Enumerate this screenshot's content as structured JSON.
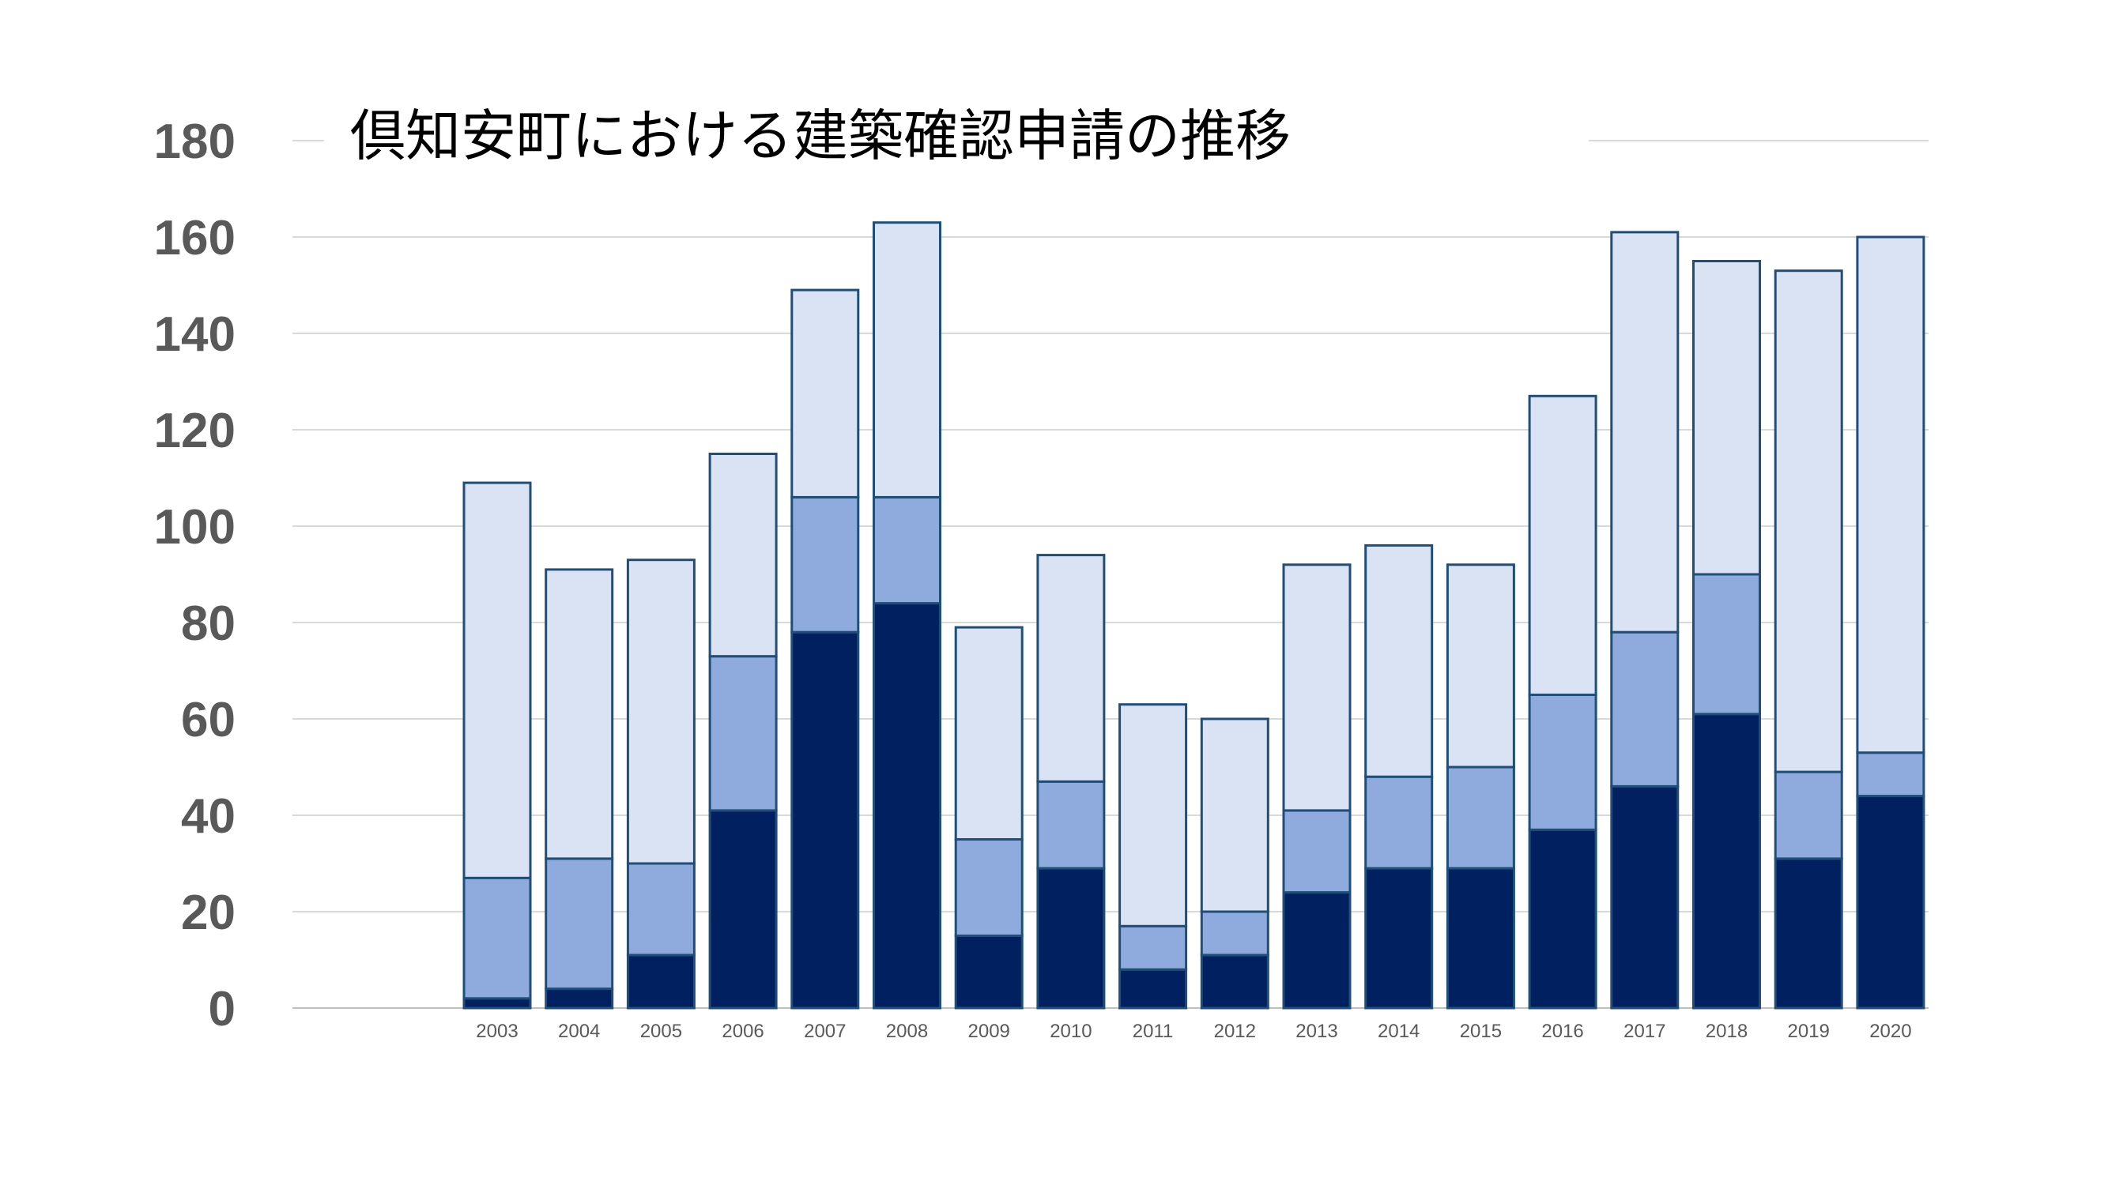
{
  "chart_data": {
    "type": "bar",
    "stacked": true,
    "title": "倶知安町における建築確認申請の推移",
    "xlabel": "",
    "ylabel": "",
    "ylim": [
      0,
      180
    ],
    "y_ticks": [
      0,
      20,
      40,
      60,
      80,
      100,
      120,
      140,
      160,
      180
    ],
    "grid": true,
    "legend": "none",
    "categories": [
      "2003",
      "2004",
      "2005",
      "2006",
      "2007",
      "2008",
      "2009",
      "2010",
      "2011",
      "2012",
      "2013",
      "2014",
      "2015",
      "2016",
      "2017",
      "2018",
      "2019",
      "2020"
    ],
    "series": [
      {
        "color": "#002060",
        "values": [
          2,
          4,
          11,
          41,
          78,
          84,
          15,
          29,
          8,
          11,
          24,
          29,
          29,
          37,
          46,
          61,
          31,
          44
        ]
      },
      {
        "color": "#8faadc",
        "values": [
          25,
          27,
          19,
          32,
          28,
          22,
          20,
          18,
          9,
          9,
          17,
          19,
          21,
          28,
          32,
          29,
          18,
          9
        ]
      },
      {
        "color": "#dae3f3",
        "values": [
          82,
          60,
          63,
          42,
          43,
          57,
          44,
          47,
          46,
          40,
          51,
          48,
          42,
          62,
          83,
          65,
          104,
          107
        ]
      }
    ],
    "totals": [
      109,
      91,
      93,
      115,
      149,
      163,
      79,
      94,
      63,
      60,
      92,
      96,
      92,
      127,
      161,
      155,
      153,
      160
    ]
  }
}
